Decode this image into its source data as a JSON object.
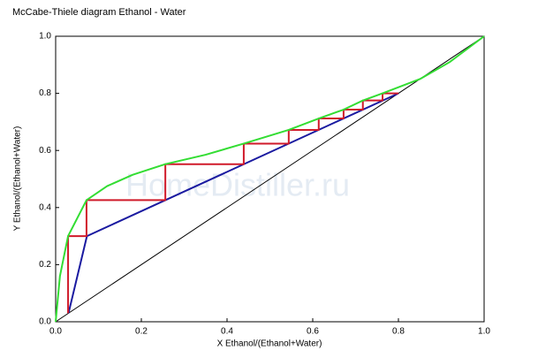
{
  "chart_data": {
    "type": "line",
    "title": "McCabe-Thiele diagram Ethanol - Water",
    "watermark": "HomeDistiller.ru",
    "xlabel": "X Ethanol/(Ethanol+Water)",
    "ylabel": "Y Ethanol/(Ethanol+Water)",
    "xlim": [
      0,
      1
    ],
    "ylim": [
      0,
      1
    ],
    "xticks": [
      {
        "value": 0,
        "label": "0.0"
      },
      0.2,
      0.4,
      0.6,
      0.8,
      {
        "value": 1,
        "label": "1.0"
      }
    ],
    "yticks": [
      {
        "value": 0,
        "label": "0.0"
      },
      0.2,
      0.4,
      0.6,
      0.8,
      {
        "value": 1,
        "label": "1.0"
      }
    ],
    "series": [
      {
        "color": "#000000",
        "x": [
          0,
          1
        ],
        "values": [
          0,
          1
        ]
      },
      {
        "color": "#1a1aa0",
        "x": [
          0.03,
          0.073,
          0.8
        ],
        "values": [
          0.03,
          0.3,
          0.8
        ]
      },
      {
        "color": "#d01a2a",
        "x": [
          0.8,
          0.763,
          0.763,
          0.717,
          0.717,
          0.672,
          0.672,
          0.614,
          0.614,
          0.544,
          0.544,
          0.439,
          0.439,
          0.256,
          0.256,
          0.072,
          0.072,
          0.029,
          0.029
        ],
        "values": [
          0.8,
          0.8,
          0.775,
          0.775,
          0.743,
          0.743,
          0.712,
          0.712,
          0.672,
          0.672,
          0.624,
          0.624,
          0.552,
          0.552,
          0.426,
          0.426,
          0.3,
          0.3,
          0.03
        ]
      },
      {
        "color": "#33dd33",
        "x": [
          0,
          0.01,
          0.029,
          0.072,
          0.12,
          0.18,
          0.256,
          0.35,
          0.439,
          0.544,
          0.614,
          0.672,
          0.717,
          0.763,
          0.85,
          0.92,
          1
        ],
        "values": [
          0,
          0.16,
          0.3,
          0.426,
          0.475,
          0.515,
          0.552,
          0.585,
          0.624,
          0.672,
          0.712,
          0.743,
          0.775,
          0.8,
          0.85,
          0.91,
          1
        ]
      }
    ]
  }
}
